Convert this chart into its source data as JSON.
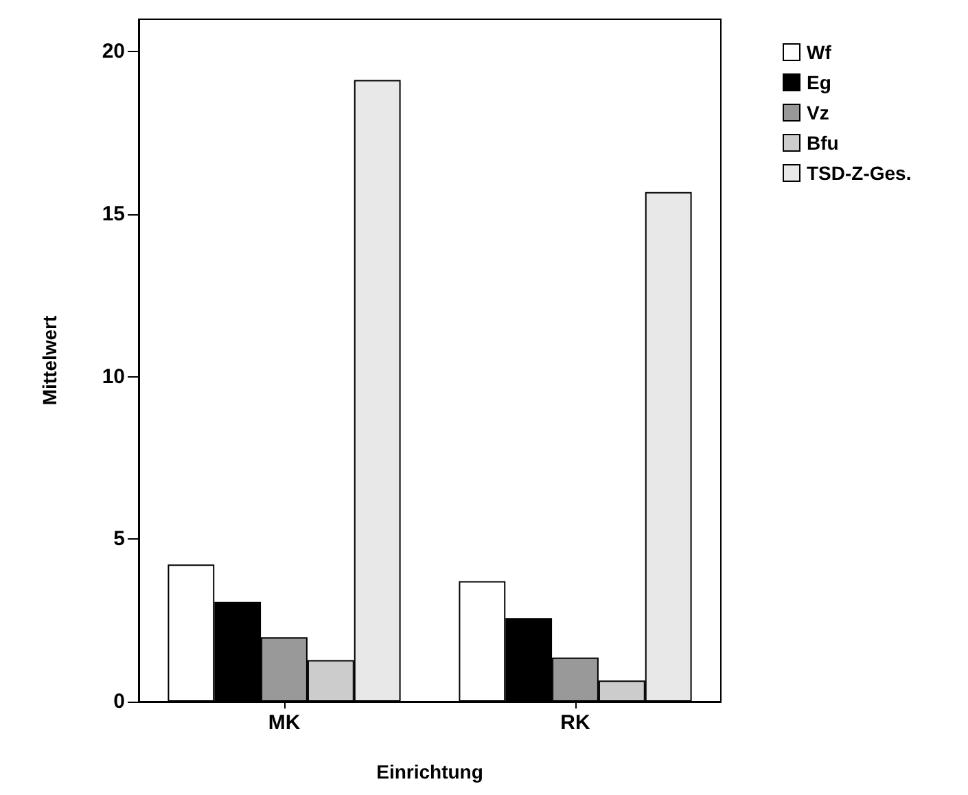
{
  "chart_data": {
    "type": "bar",
    "xlabel": "Einrichtung",
    "ylabel": "Mittelwert",
    "categories": [
      "MK",
      "RK"
    ],
    "series": [
      {
        "name": "Wf",
        "color": "#ffffff",
        "values": [
          4.22,
          3.71
        ]
      },
      {
        "name": "Eg",
        "color": "#000000",
        "values": [
          3.07,
          2.57
        ]
      },
      {
        "name": "Vz",
        "color": "#999999",
        "values": [
          1.98,
          1.36
        ]
      },
      {
        "name": "Bfu",
        "color": "#cccccc",
        "values": [
          1.28,
          0.65
        ]
      },
      {
        "name": "TSD-Z-Ges.",
        "color": "#e8e8e8",
        "values": [
          19.13,
          15.68
        ]
      }
    ],
    "ylim": [
      0,
      21
    ],
    "yticks": [
      0,
      5,
      10,
      15,
      20
    ],
    "grid": false,
    "legend": "top right"
  }
}
